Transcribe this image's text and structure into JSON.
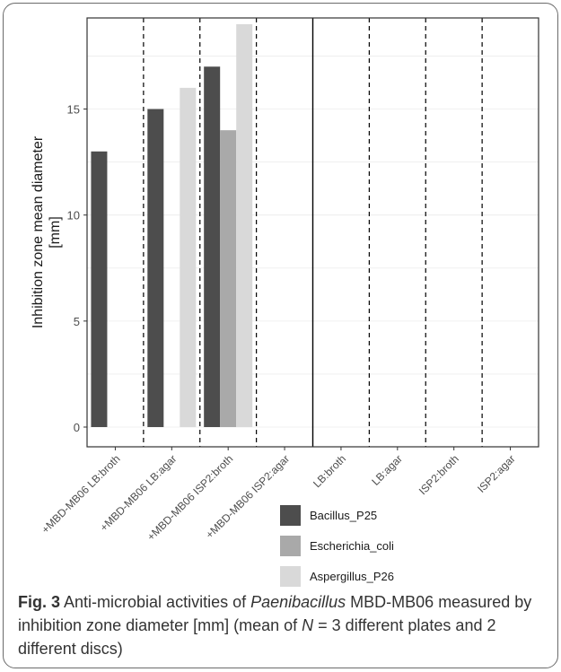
{
  "chart_data": {
    "type": "bar",
    "ylabel_line1": "Inhibition zone mean diameter",
    "ylabel_line2": "[mm]",
    "xlabel": "",
    "ylim": [
      0,
      19
    ],
    "yticks": [
      0,
      5,
      10,
      15
    ],
    "grid": true,
    "legend_position": "bottom",
    "categories": [
      "+MBD-MB06 LB:broth",
      "+MBD-MB06 LB:agar",
      "+MBD-MB06 ISP2:broth",
      "+MBD-MB06 ISP2:agar",
      "LB:broth",
      "LB:agar",
      "ISP2:broth",
      "ISP2:agar"
    ],
    "series": [
      {
        "name": "Bacillus_P25",
        "color": "#4d4d4d",
        "values": [
          13,
          15,
          17,
          0,
          0,
          0,
          0,
          0
        ]
      },
      {
        "name": "Escherichia_coli",
        "color": "#a9a9a9",
        "values": [
          0,
          0,
          14,
          0,
          0,
          0,
          0,
          0
        ]
      },
      {
        "name": "Aspergillus_P26",
        "color": "#d9d9d9",
        "values": [
          0,
          16,
          19,
          0,
          0,
          0,
          0,
          0
        ]
      }
    ]
  },
  "caption": {
    "fig_label": "Fig. 3",
    "text_before_italic": " Anti-microbial activities of ",
    "italic": "Paenibacillus",
    "text_mid": " MBD-MB06 measured by inhibition zone diameter [mm] (mean of ",
    "n_italic": "N",
    "text_after": " = 3 different plates and 2 different discs)"
  }
}
